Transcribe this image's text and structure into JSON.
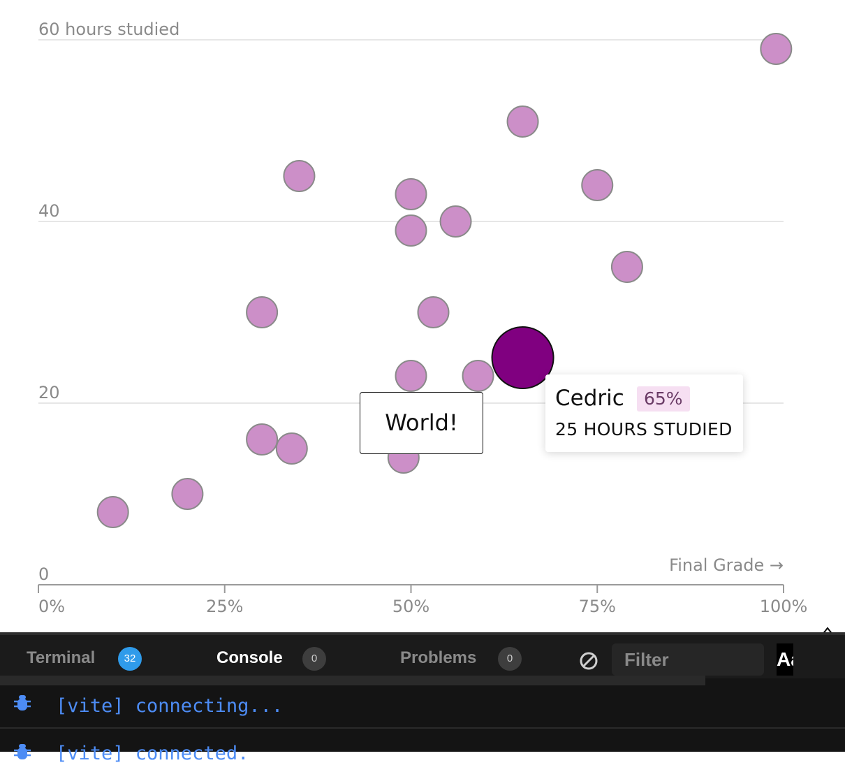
{
  "chart_data": {
    "type": "scatter",
    "yaxis": {
      "ticks": [
        0,
        20,
        40
      ],
      "top_label": "60 hours studied",
      "ylim": [
        0,
        60
      ]
    },
    "xaxis": {
      "ticks": [
        "0%",
        "25%",
        "50%",
        "75%",
        "100%"
      ],
      "xlim": [
        0,
        100
      ],
      "label": "Final Grade →"
    },
    "grid": true,
    "points": [
      {
        "x": 99,
        "y": 59
      },
      {
        "x": 65,
        "y": 51
      },
      {
        "x": 35,
        "y": 45
      },
      {
        "x": 50,
        "y": 43
      },
      {
        "x": 75,
        "y": 44
      },
      {
        "x": 50,
        "y": 39
      },
      {
        "x": 56,
        "y": 40
      },
      {
        "x": 79,
        "y": 35
      },
      {
        "x": 30,
        "y": 30
      },
      {
        "x": 53,
        "y": 30
      },
      {
        "x": 50,
        "y": 23
      },
      {
        "x": 59,
        "y": 23
      },
      {
        "x": 30,
        "y": 16
      },
      {
        "x": 34,
        "y": 15
      },
      {
        "x": 49,
        "y": 14
      },
      {
        "x": 20,
        "y": 10
      },
      {
        "x": 10,
        "y": 8
      }
    ],
    "highlight": {
      "name": "Cedric",
      "x": 65,
      "y": 25
    },
    "colors": {
      "point": "#cc8fc8",
      "point_stroke": "#8a8a8a",
      "highlight": "#800080",
      "grid": "#e6e6e6",
      "axis": "#9a9a9a"
    }
  },
  "tooltip": {
    "name": "Cedric",
    "grade": "65%",
    "hours": "25 HOURS STUDIED"
  },
  "annotation": {
    "text": "World!"
  },
  "devtools": {
    "tabs": [
      {
        "label": "Terminal",
        "count": "32"
      },
      {
        "label": "Console",
        "count": "0"
      },
      {
        "label": "Problems",
        "count": "0"
      }
    ],
    "filter_placeholder": "Filter",
    "aa_label": "Aa",
    "logs": [
      "[vite] connecting...",
      "[vite] connected."
    ],
    "icons": {
      "clear": "clear-console-icon",
      "resize": "resize-icon",
      "log": "bug-icon"
    }
  }
}
